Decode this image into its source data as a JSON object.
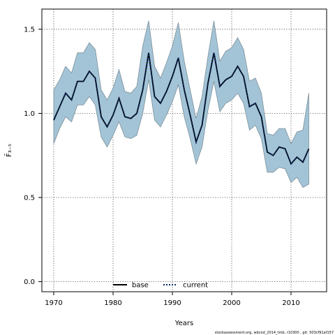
{
  "chart_data": {
    "type": "line",
    "xlabel": "Years",
    "ylabel": "F̄₃₋₅",
    "xlim": [
      1968,
      2016
    ],
    "ylim": [
      -0.06,
      1.62
    ],
    "x_ticks": [
      1970,
      1980,
      1990,
      2000,
      2010
    ],
    "y_ticks": [
      0.0,
      0.5,
      1.0,
      1.5
    ],
    "x_tick_labels": [
      "1970",
      "1980",
      "1990",
      "2000",
      "2010"
    ],
    "y_tick_labels": [
      "0.0",
      "0.5",
      "1.0",
      "1.5"
    ],
    "grid": true,
    "legend_position": "bottom-center",
    "x": [
      1970,
      1971,
      1972,
      1973,
      1974,
      1975,
      1976,
      1977,
      1978,
      1979,
      1980,
      1981,
      1982,
      1983,
      1984,
      1985,
      1986,
      1987,
      1988,
      1989,
      1990,
      1991,
      1992,
      1993,
      1994,
      1995,
      1996,
      1997,
      1998,
      1999,
      2000,
      2001,
      2002,
      2003,
      2004,
      2005,
      2006,
      2007,
      2008,
      2009,
      2010,
      2011,
      2012,
      2013
    ],
    "series": [
      {
        "name": "base",
        "style": "solid",
        "color": "#000000",
        "values": [
          0.96,
          1.04,
          1.12,
          1.08,
          1.19,
          1.19,
          1.25,
          1.21,
          0.98,
          0.92,
          0.99,
          1.09,
          0.98,
          0.97,
          1.0,
          1.14,
          1.36,
          1.1,
          1.06,
          1.13,
          1.22,
          1.33,
          1.14,
          0.99,
          0.83,
          0.93,
          1.18,
          1.36,
          1.16,
          1.2,
          1.22,
          1.28,
          1.22,
          1.04,
          1.06,
          0.98,
          0.77,
          0.75,
          0.8,
          0.79,
          0.7,
          0.74,
          0.71,
          0.79
        ]
      },
      {
        "name": "current",
        "style": "dotted",
        "color": "#0a2a66",
        "values": [
          0.96,
          1.04,
          1.12,
          1.08,
          1.19,
          1.19,
          1.25,
          1.21,
          0.98,
          0.92,
          0.99,
          1.09,
          0.98,
          0.97,
          1.0,
          1.14,
          1.36,
          1.1,
          1.06,
          1.13,
          1.22,
          1.33,
          1.14,
          0.99,
          0.83,
          0.93,
          1.18,
          1.36,
          1.16,
          1.2,
          1.22,
          1.28,
          1.22,
          1.04,
          1.06,
          0.98,
          0.77,
          0.75,
          0.8,
          0.79,
          0.7,
          0.74,
          0.71,
          0.79
        ]
      }
    ],
    "band": {
      "color": "#a3c4d6",
      "edge_color": "#7a8f9a",
      "lower": [
        0.82,
        0.91,
        0.98,
        0.95,
        1.05,
        1.05,
        1.1,
        1.05,
        0.86,
        0.8,
        0.87,
        0.95,
        0.86,
        0.85,
        0.87,
        1.0,
        1.2,
        0.96,
        0.92,
        0.99,
        1.07,
        1.17,
        0.98,
        0.85,
        0.7,
        0.8,
        1.02,
        1.19,
        1.01,
        1.06,
        1.08,
        1.12,
        1.06,
        0.9,
        0.93,
        0.85,
        0.65,
        0.65,
        0.68,
        0.67,
        0.59,
        0.62,
        0.56,
        0.58
      ],
      "upper": [
        1.14,
        1.2,
        1.28,
        1.24,
        1.36,
        1.36,
        1.42,
        1.38,
        1.14,
        1.08,
        1.15,
        1.26,
        1.13,
        1.12,
        1.16,
        1.4,
        1.55,
        1.28,
        1.21,
        1.3,
        1.4,
        1.54,
        1.31,
        1.14,
        0.97,
        1.1,
        1.34,
        1.55,
        1.31,
        1.37,
        1.39,
        1.45,
        1.38,
        1.19,
        1.21,
        1.12,
        0.88,
        0.87,
        0.91,
        0.91,
        0.82,
        0.89,
        0.9,
        1.12
      ]
    },
    "credit": "stockassessment.org, wbcod_2014_tmb, r10300 , git: 503cf91af157"
  }
}
